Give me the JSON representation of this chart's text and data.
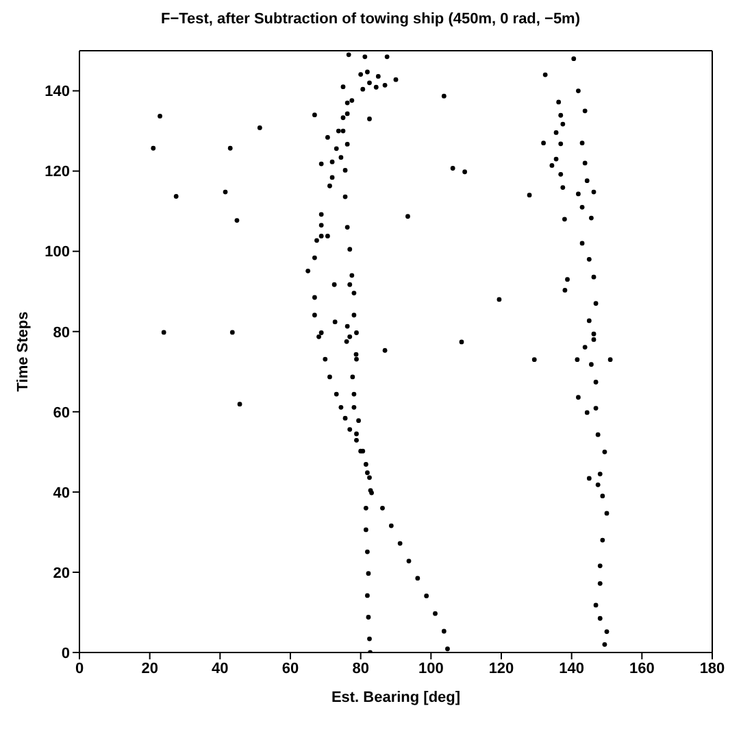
{
  "chart_data": {
    "type": "scatter",
    "title": "F−Test, after Subtraction of towing ship  (450m, 0 rad, −5m)",
    "xlabel": "Est. Bearing [deg]",
    "ylabel": "Time Steps",
    "xlim": [
      0,
      180
    ],
    "xticks": [
      0,
      20,
      40,
      60,
      80,
      100,
      120,
      140,
      160,
      180
    ],
    "ylim": [
      0,
      150
    ],
    "yticks": [
      0,
      20,
      40,
      60,
      80,
      100,
      120,
      140
    ],
    "grid": false,
    "legend": false,
    "marker": "circle",
    "series": [
      {
        "color": "#000000",
        "x": [
          149.4,
          150,
          148.1,
          146.9,
          148.1,
          148.1,
          148.8,
          150,
          148.8,
          148.1,
          149.4,
          147.5,
          146.9,
          146.9,
          145.6,
          146.3,
          145,
          146.9,
          146.3,
          145,
          143,
          143,
          144.4,
          143.8,
          143,
          143.8,
          141.9,
          140.6
        ],
        "values": [
          2,
          5.2,
          8.5,
          11.8,
          17.2,
          21.6,
          28,
          34.7,
          39,
          44.5,
          50,
          54.3,
          60.9,
          67.4,
          71.8,
          78,
          82.7,
          87,
          93.6,
          98,
          102,
          111,
          117.6,
          122,
          127,
          135,
          140,
          148
        ]
      },
      {
        "color": "#000000",
        "x": [
          104.7,
          103.7,
          101.2,
          98.7,
          96.2,
          93.7,
          91.2,
          88.7,
          86.2,
          83.1,
          82.5,
          81.5,
          80,
          78.8,
          76.9,
          75.6,
          74.4,
          73.1,
          71.2,
          69.9,
          68.8,
          68.1,
          66.9,
          66.9,
          65,
          66.9,
          67.5,
          70.6,
          68.8,
          68.8,
          68.8,
          71.2,
          71.9,
          68.8,
          71.9,
          73.1,
          70.6,
          73.7,
          75,
          76.2,
          75
        ],
        "values": [
          0.9,
          5.3,
          9.7,
          14.1,
          18.5,
          22.8,
          27.2,
          31.6,
          36,
          39.8,
          43.6,
          46.9,
          50.2,
          52.9,
          55.6,
          58.4,
          61.1,
          64.4,
          68.7,
          73.1,
          79.7,
          78.7,
          84.1,
          88.5,
          95.1,
          98.4,
          102.7,
          103.8,
          103.8,
          106.5,
          109.2,
          116.3,
          118.4,
          121.8,
          122.3,
          125.6,
          128.4,
          130,
          133.3,
          137,
          141
        ]
      },
      {
        "color": "#000000",
        "x": [
          82.8,
          81.9,
          80.6,
          78.8,
          79.4,
          78.1,
          78.1,
          77.7,
          78.8,
          78.8,
          78.7,
          76.9,
          78.1,
          78.1,
          77.5,
          76.9,
          76.2,
          75.6,
          75.6,
          74.4,
          76.2,
          75,
          76.2,
          77.5,
          80,
          81.2
        ],
        "values": [
          40.4,
          44.8,
          50.2,
          54.5,
          57.8,
          61.1,
          64.4,
          68.7,
          73.1,
          79.7,
          74.3,
          78.7,
          84.1,
          89.6,
          94,
          100.5,
          106,
          113.6,
          120.2,
          123.4,
          126.7,
          130,
          134.3,
          137.6,
          144.1,
          148.5
        ]
      },
      {
        "color": "#000000",
        "x": [
          82.7,
          82.5,
          82.2,
          81.9,
          82.2,
          81.9,
          81.5,
          81.5
        ],
        "values": [
          0,
          3.4,
          8.8,
          14.2,
          19.7,
          25.1,
          30.6,
          36
        ]
      },
      {
        "color": "#000000",
        "x": [
          22.9,
          21,
          27.5,
          42.9,
          41.5,
          44.8,
          51.3,
          24,
          43.5,
          45.6,
          66.9,
          82.5,
          103.7,
          106.2,
          109.6,
          93.4,
          72.5,
          76.9,
          72.7,
          76.2,
          86.9,
          108.7,
          81.9,
          85,
          82.5,
          90,
          86.9,
          84.4,
          80.6,
          87.5,
          76.6,
          76,
          132.5,
          132,
          128,
          138,
          119.4,
          129.4,
          141.6,
          151,
          136.3,
          136.9,
          137.5,
          135.6,
          136.9,
          135.6,
          134.4,
          136.9,
          137.5,
          141.9,
          146.3,
          145.6,
          138.8,
          138.1,
          146.3,
          143.8,
          141.9,
          144.4,
          145,
          147.5
        ],
        "values": [
          133.7,
          125.7,
          113.7,
          125.7,
          114.8,
          107.7,
          130.8,
          79.8,
          79.8,
          61.9,
          134,
          133,
          138.7,
          120.7,
          119.8,
          108.7,
          91.7,
          91.7,
          82.4,
          81.3,
          75.3,
          77.4,
          144.7,
          143.6,
          142,
          142.8,
          141.4,
          140.9,
          140.4,
          148.5,
          149,
          77.5,
          144,
          127,
          114,
          108,
          88,
          73,
          73,
          73,
          137.2,
          133.9,
          131.7,
          129.6,
          126.8,
          123,
          121.4,
          119.2,
          115.9,
          114.3,
          114.8,
          108.3,
          93,
          90.3,
          79.4,
          76.1,
          63.6,
          59.8,
          43.4,
          41.8
        ]
      }
    ]
  }
}
